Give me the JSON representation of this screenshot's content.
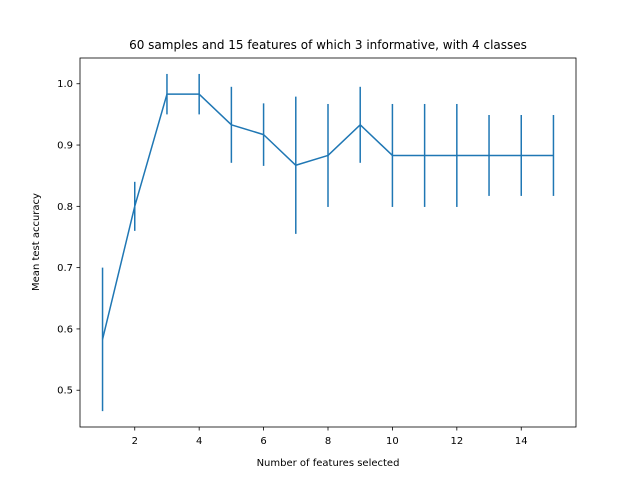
{
  "chart_data": {
    "type": "line",
    "title": "60 samples and 15 features of which 3 informative, with 4 classes",
    "xlabel": "Number of features selected",
    "ylabel": "Mean test accuracy",
    "xlim": [
      0.3,
      15.7
    ],
    "ylim": [
      0.44,
      1.042
    ],
    "xticks": [
      2,
      4,
      6,
      8,
      10,
      12,
      14
    ],
    "yticks": [
      0.5,
      0.6,
      0.7,
      0.8,
      0.9,
      1.0
    ],
    "ytick_labels": [
      "0.5",
      "0.6",
      "0.7",
      "0.8",
      "0.9",
      "1.0"
    ],
    "grid": false,
    "color": "#1f77b4",
    "series": [
      {
        "x": [
          1,
          2,
          3,
          4,
          5,
          6,
          7,
          8,
          9,
          10,
          11,
          12,
          13,
          14,
          15
        ],
        "y": [
          0.583,
          0.8,
          0.983,
          0.983,
          0.933,
          0.917,
          0.867,
          0.883,
          0.933,
          0.883,
          0.883,
          0.883,
          0.883,
          0.883,
          0.883
        ],
        "yerr": [
          0.117,
          0.04,
          0.033,
          0.033,
          0.062,
          0.051,
          0.112,
          0.084,
          0.062,
          0.084,
          0.084,
          0.084,
          0.066,
          0.066,
          0.066
        ]
      }
    ]
  }
}
